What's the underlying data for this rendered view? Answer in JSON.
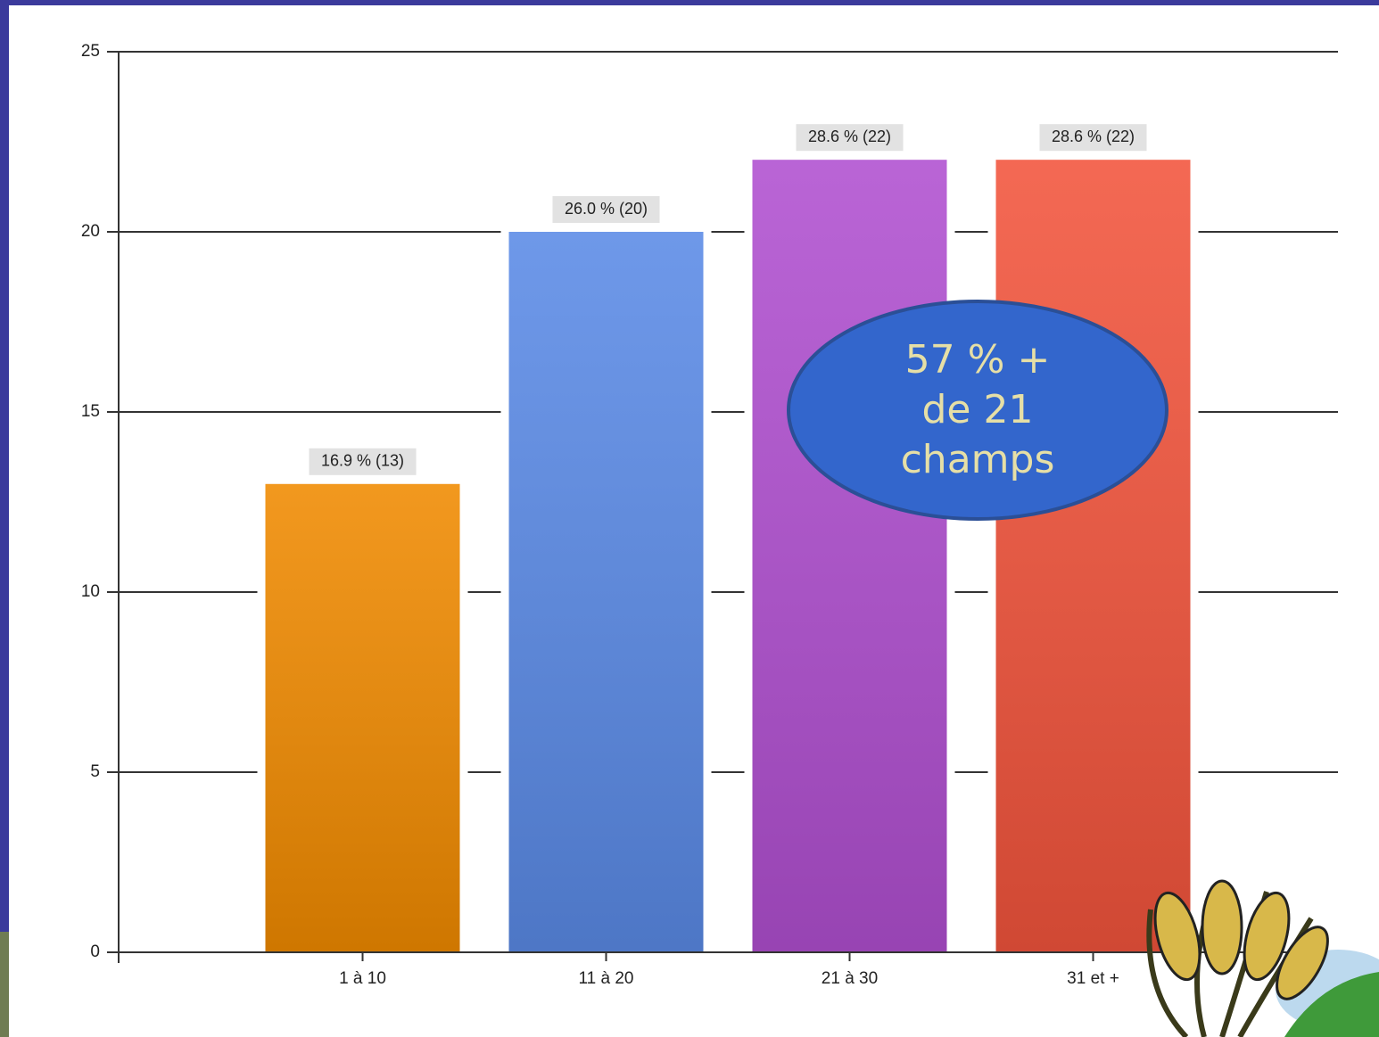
{
  "chart_data": {
    "type": "bar",
    "categories": [
      "1 à 10",
      "11 à 20",
      "21 à 30",
      "31 et +"
    ],
    "values": [
      13,
      20,
      22,
      22
    ],
    "value_labels": [
      "16.9 % (13)",
      "26.0 % (20)",
      "28.6 % (22)",
      "28.6 % (22)"
    ],
    "colors": [
      "#f08a00",
      "#5a8ae6",
      "#b04fd0",
      "#f2543c"
    ],
    "ylim": [
      0,
      25
    ],
    "yticks": [
      0,
      5,
      10,
      15,
      20,
      25
    ],
    "grid": true,
    "annotation": [
      "57 % +",
      "de 21",
      "champs"
    ]
  }
}
